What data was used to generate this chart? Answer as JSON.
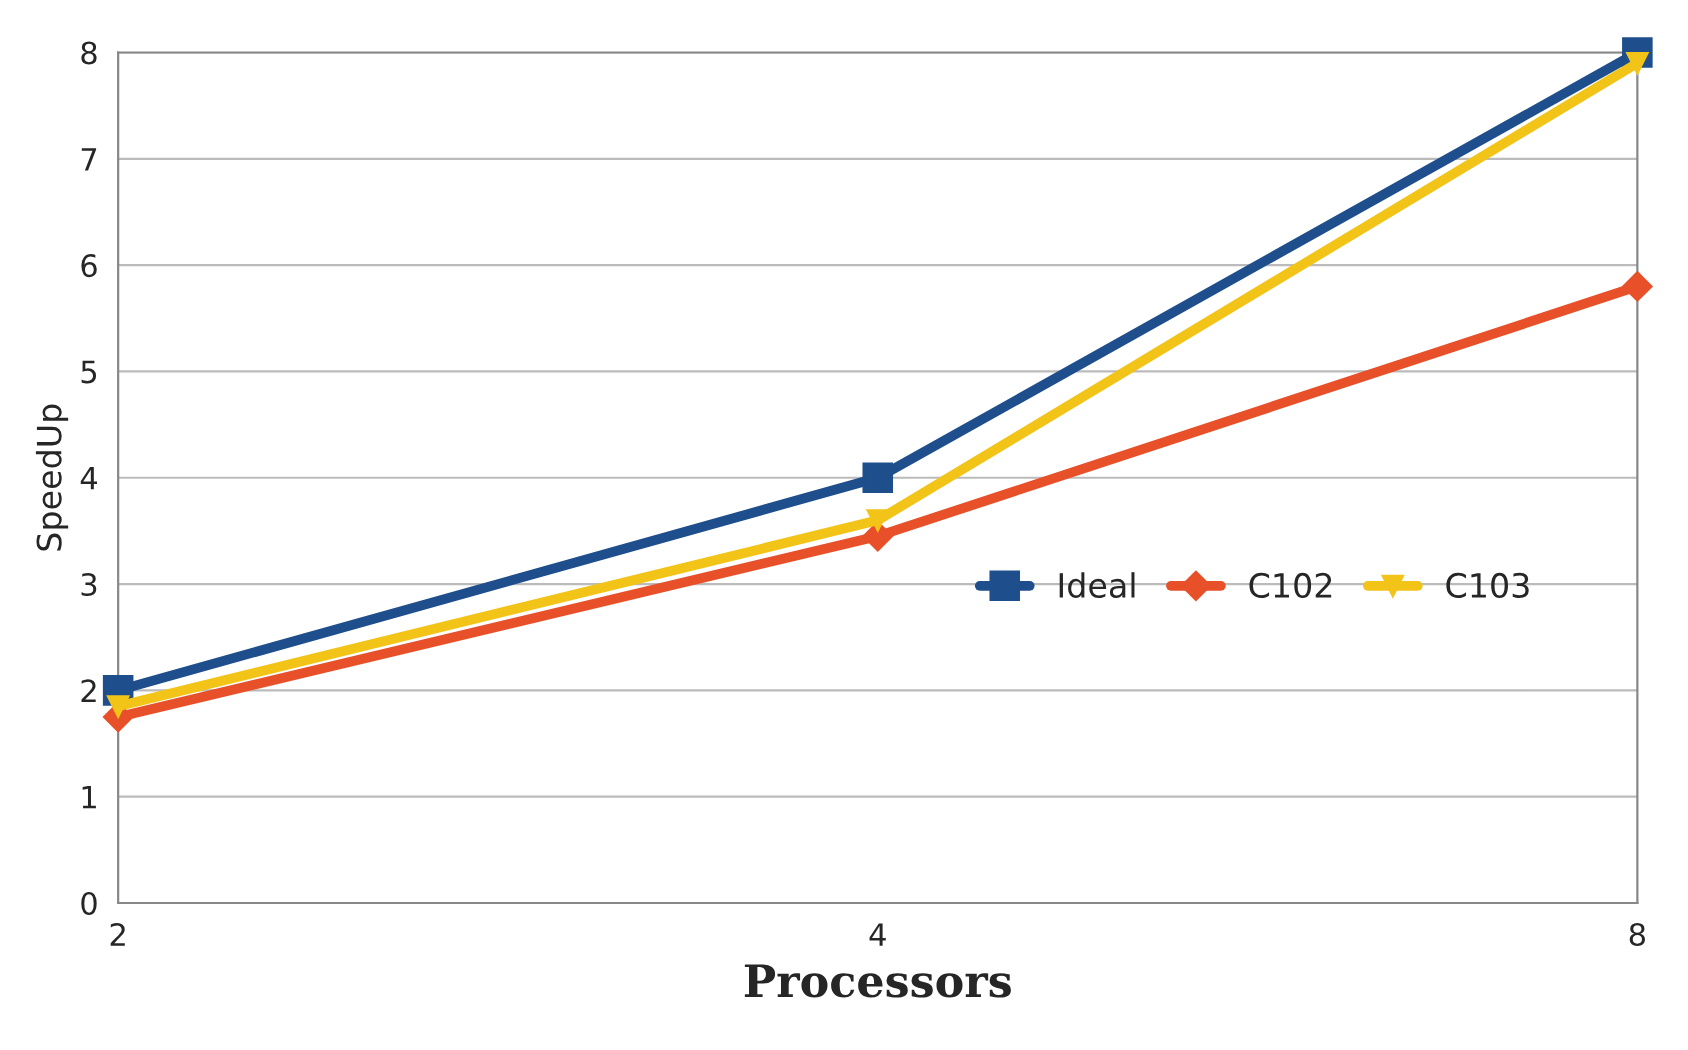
{
  "chart_data": {
    "type": "line",
    "xlabel": "Processors",
    "ylabel": "SpeedUp",
    "x": [
      2,
      4,
      8
    ],
    "log": "x",
    "xlim": [
      2,
      8
    ],
    "xticks": [
      2,
      4,
      8
    ],
    "series": [
      {
        "name": "Ideal",
        "color": "#1f4e8c",
        "values": [
          2,
          4,
          8
        ],
        "marker": "square"
      },
      {
        "name": "C102",
        "color": "#e8502a",
        "values": [
          1.75,
          3.45,
          5.8
        ],
        "marker": "diamond"
      },
      {
        "name": "C103",
        "color": "#f2c418",
        "values": [
          1.85,
          3.6,
          7.9
        ],
        "marker": "triangle"
      }
    ],
    "ylim": [
      0,
      8
    ],
    "yticks": [
      0,
      1,
      2,
      3,
      4,
      5,
      6,
      7,
      8
    ],
    "grid": "y",
    "legend": "right",
    "line_style": "solid"
  }
}
